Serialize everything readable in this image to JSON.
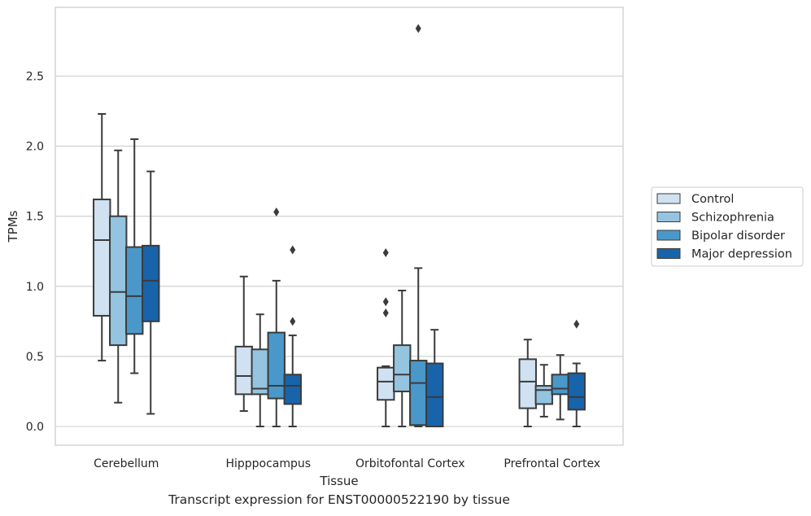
{
  "caption": "Transcript expression for ENST00000522190 by tissue",
  "chart_data": {
    "type": "box",
    "xlabel": "Tissue",
    "ylabel": "TPMs",
    "ylim": [
      -0.13,
      2.98
    ],
    "yticks": [
      0.0,
      0.5,
      1.0,
      1.5,
      2.0,
      2.5
    ],
    "grid": "horizontal",
    "legend_position": "right",
    "categories": [
      "Cerebellum",
      "Hipppocampus",
      "Orbitofontal Cortex",
      "Prefrontal Cortex"
    ],
    "series": [
      {
        "name": "Control",
        "color": "#d0e1f2",
        "boxes": [
          {
            "whislo": 0.47,
            "q1": 0.79,
            "med": 1.33,
            "q3": 1.62,
            "whishi": 2.23,
            "fliers": []
          },
          {
            "whislo": 0.11,
            "q1": 0.23,
            "med": 0.36,
            "q3": 0.57,
            "whishi": 1.07,
            "fliers": []
          },
          {
            "whislo": 0.0,
            "q1": 0.19,
            "med": 0.32,
            "q3": 0.42,
            "whishi": 0.43,
            "fliers": [
              0.81,
              0.89,
              1.24
            ]
          },
          {
            "whislo": 0.0,
            "q1": 0.13,
            "med": 0.32,
            "q3": 0.48,
            "whishi": 0.62,
            "fliers": []
          }
        ]
      },
      {
        "name": "Schizophrenia",
        "color": "#94c4df",
        "boxes": [
          {
            "whislo": 0.17,
            "q1": 0.58,
            "med": 0.96,
            "q3": 1.5,
            "whishi": 1.97,
            "fliers": []
          },
          {
            "whislo": 0.0,
            "q1": 0.23,
            "med": 0.27,
            "q3": 0.55,
            "whishi": 0.8,
            "fliers": []
          },
          {
            "whislo": 0.0,
            "q1": 0.25,
            "med": 0.37,
            "q3": 0.58,
            "whishi": 0.97,
            "fliers": []
          },
          {
            "whislo": 0.07,
            "q1": 0.16,
            "med": 0.26,
            "q3": 0.29,
            "whishi": 0.44,
            "fliers": []
          }
        ]
      },
      {
        "name": "Bipolar disorder",
        "color": "#4a98c9",
        "boxes": [
          {
            "whislo": 0.38,
            "q1": 0.66,
            "med": 0.93,
            "q3": 1.28,
            "whishi": 2.05,
            "fliers": []
          },
          {
            "whislo": 0.0,
            "q1": 0.2,
            "med": 0.29,
            "q3": 0.67,
            "whishi": 1.04,
            "fliers": [
              1.53
            ]
          },
          {
            "whislo": 0.0,
            "q1": 0.01,
            "med": 0.31,
            "q3": 0.47,
            "whishi": 1.13,
            "fliers": [
              2.84
            ]
          },
          {
            "whislo": 0.05,
            "q1": 0.23,
            "med": 0.27,
            "q3": 0.37,
            "whishi": 0.51,
            "fliers": []
          }
        ]
      },
      {
        "name": "Major depression",
        "color": "#1764ab",
        "boxes": [
          {
            "whislo": 0.09,
            "q1": 0.75,
            "med": 1.04,
            "q3": 1.29,
            "whishi": 1.82,
            "fliers": []
          },
          {
            "whislo": 0.0,
            "q1": 0.16,
            "med": 0.29,
            "q3": 0.37,
            "whishi": 0.65,
            "fliers": [
              0.75,
              1.26
            ]
          },
          {
            "whislo": 0.0,
            "q1": 0.0,
            "med": 0.21,
            "q3": 0.45,
            "whishi": 0.69,
            "fliers": []
          },
          {
            "whislo": 0.0,
            "q1": 0.12,
            "med": 0.21,
            "q3": 0.38,
            "whishi": 0.45,
            "fliers": [
              0.73
            ]
          }
        ]
      }
    ]
  }
}
